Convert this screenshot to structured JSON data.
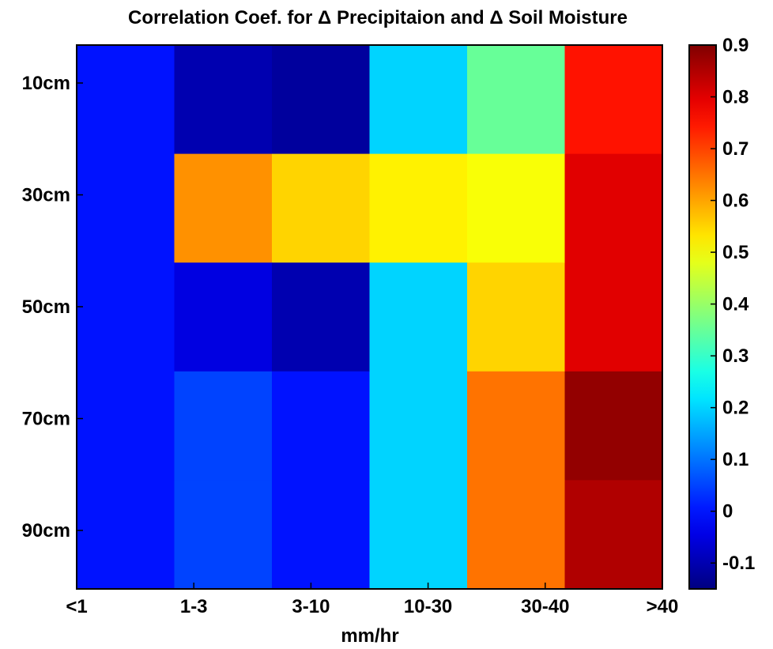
{
  "chart_data": {
    "type": "heatmap",
    "title": "Correlation Coef. for Δ Precipitaion and Δ Soil Moisture",
    "xlabel": "mm/hr",
    "ylabel": "",
    "x_categories": [
      "<1",
      "1-3",
      "3-10",
      "10-30",
      "30-40",
      ">40"
    ],
    "y_categories": [
      "10cm",
      "30cm",
      "50cm",
      "70cm",
      "90cm"
    ],
    "colorbar": {
      "ticks": [
        -0.1,
        0,
        0.1,
        0.2,
        0.3,
        0.4,
        0.5,
        0.6,
        0.7,
        0.8,
        0.9
      ],
      "range": [
        -0.15,
        0.9
      ]
    },
    "grid": false,
    "values": [
      [
        0.0,
        -0.1,
        -0.12,
        0.2,
        0.35,
        0.75
      ],
      [
        0.0,
        0.62,
        0.55,
        0.52,
        0.5,
        0.8
      ],
      [
        0.0,
        -0.05,
        -0.1,
        0.2,
        0.55,
        0.8
      ],
      [
        0.0,
        0.05,
        0.0,
        0.2,
        0.65,
        0.88
      ],
      [
        0.0,
        0.05,
        0.0,
        0.2,
        0.65,
        0.85
      ]
    ]
  }
}
